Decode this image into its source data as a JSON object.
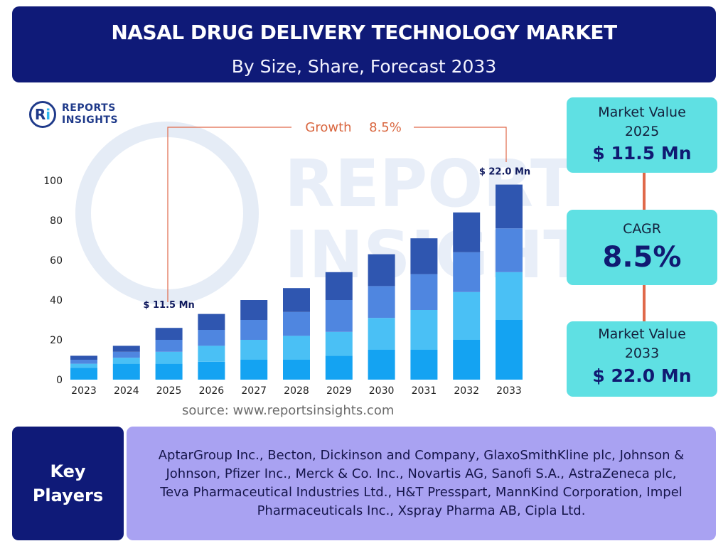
{
  "header": {
    "title": "NASAL DRUG DELIVERY TECHNOLOGY MARKET",
    "subtitle": "By Size, Share, Forecast 2033"
  },
  "logo": {
    "mark": "Ri",
    "line1": "REPORTS",
    "line2": "INSIGHTS"
  },
  "watermark": {
    "line1": "REPORTS",
    "line2": "INSIGHTS"
  },
  "growth": {
    "label": "Growth",
    "value": "8.5%"
  },
  "bar_labels": {
    "start": "$ 11.5 Mn",
    "end": "$ 22.0 Mn"
  },
  "side_panel": {
    "box1": {
      "label_line1": "Market Value",
      "label_line2": "2025",
      "value": "$ 11.5 Mn"
    },
    "box2": {
      "label": "CAGR",
      "value": "8.5%"
    },
    "box3": {
      "label_line1": "Market Value",
      "label_line2": "2033",
      "value": "$ 22.0 Mn"
    }
  },
  "source": "source: www.reportsinsights.com",
  "key_players": {
    "label_line1": "Key",
    "label_line2": "Players",
    "text": "AptarGroup Inc., Becton, Dickinson and Company, GlaxoSmithKline plc, Johnson & Johnson, Pfizer Inc., Merck & Co. Inc., Novartis AG, Sanofi S.A., AstraZeneca plc, Teva Pharmaceutical Industries Ltd., H&T Presspart, MannKind Corporation, Impel Pharmaceuticals Inc., Xspray Pharma AB, Cipla Ltd."
  },
  "colors": {
    "navy": "#0f1a78",
    "teal_box": "#5fe0e3",
    "players_box": "#a9a2f2",
    "connector": "#e0694a",
    "series": [
      "#14a3f2",
      "#4ac0f5",
      "#4f86e0",
      "#2f56b0"
    ]
  },
  "chart_data": {
    "type": "bar",
    "stacked": true,
    "categories": [
      "2023",
      "2024",
      "2025",
      "2026",
      "2027",
      "2028",
      "2029",
      "2030",
      "2031",
      "2032",
      "2033"
    ],
    "series": [
      {
        "values": [
          6,
          8,
          8,
          9,
          10,
          10,
          12,
          15,
          15,
          20,
          30
        ]
      },
      {
        "values": [
          2,
          3,
          6,
          8,
          10,
          12,
          12,
          16,
          20,
          24,
          24
        ]
      },
      {
        "values": [
          2,
          3,
          6,
          8,
          10,
          12,
          16,
          16,
          18,
          20,
          22
        ]
      },
      {
        "values": [
          2,
          3,
          6,
          8,
          10,
          12,
          14,
          16,
          18,
          20,
          22
        ]
      }
    ],
    "ylim": [
      0,
      100
    ],
    "yticks": [
      0,
      20,
      40,
      60,
      80,
      100
    ],
    "grid": false,
    "legend": false
  }
}
